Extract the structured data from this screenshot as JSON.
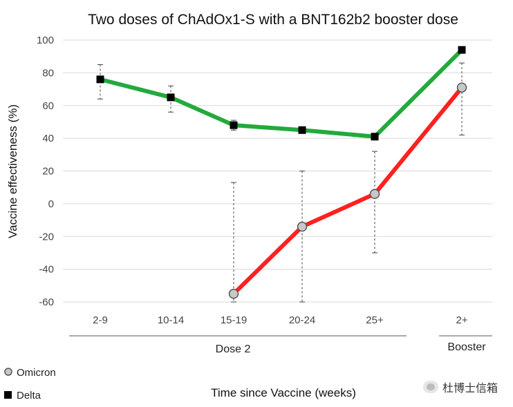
{
  "chart_data": {
    "type": "line",
    "title": "Two doses of ChAdOx1-S with a BNT162b2 booster dose",
    "xlabel": "Time since Vaccine (weeks)",
    "ylabel": "Vaccine effectiveness (%)",
    "ylim": [
      -60,
      100
    ],
    "yticks": [
      100,
      80,
      60,
      40,
      20,
      0,
      -20,
      -40,
      -60
    ],
    "yticks_text": [
      "100",
      "80",
      "60",
      "40",
      "20",
      "0",
      "-20",
      "-40",
      "-60"
    ],
    "categories": [
      "2-9",
      "10-14",
      "15-19",
      "20-24",
      "25+",
      "2+"
    ],
    "groups": [
      {
        "label": "Dose 2",
        "categories": [
          "2-9",
          "10-14",
          "15-19",
          "20-24",
          "25+"
        ]
      },
      {
        "label": "Booster",
        "categories": [
          "2+"
        ]
      }
    ],
    "grid": "horizontal",
    "legend_position": "bottom-left",
    "series": [
      {
        "name": "Omicron",
        "marker": "circle",
        "line_color": "#ff2020",
        "marker_color": "#c8c8c8",
        "values": [
          null,
          null,
          -55,
          -14,
          6,
          71
        ],
        "ci_low": [
          null,
          null,
          -60,
          -60,
          -30,
          42
        ],
        "ci_high": [
          null,
          null,
          13,
          20,
          32,
          86
        ]
      },
      {
        "name": "Delta",
        "marker": "square",
        "line_color": "#22aa3c",
        "marker_color": "#000000",
        "values": [
          76,
          65,
          48,
          45,
          41,
          94
        ],
        "ci_low": [
          64,
          56,
          45,
          43,
          39,
          93
        ],
        "ci_high": [
          85,
          72,
          51,
          47,
          42,
          95
        ]
      }
    ]
  },
  "legend": {
    "omicron_label": "Omicron",
    "delta_label": "Delta"
  },
  "watermark": {
    "text": "杜博士信箱"
  }
}
